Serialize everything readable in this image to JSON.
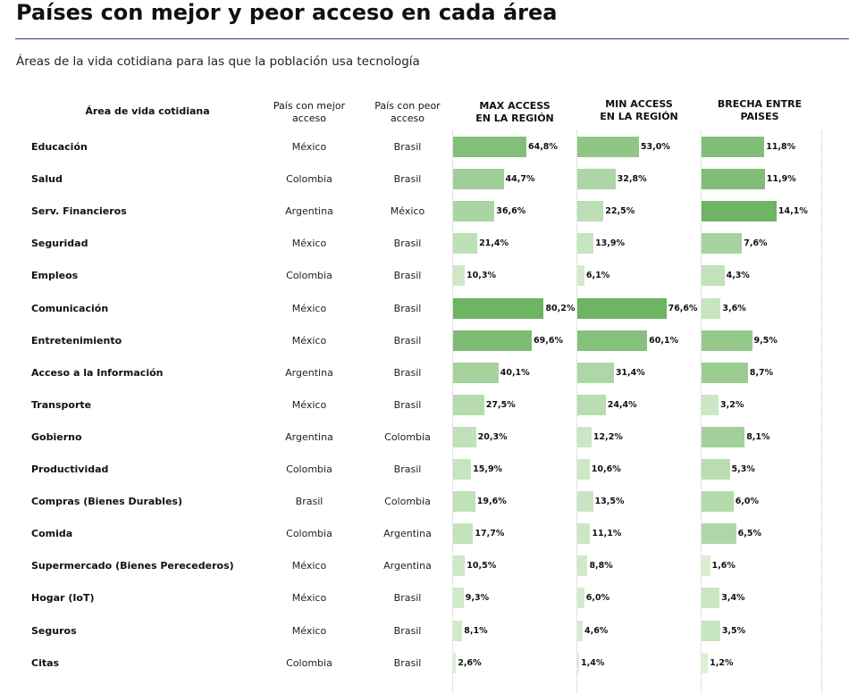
{
  "title": "Países con mejor y peor acceso en cada área",
  "subtitle": "Áreas de la vida cotidiana para las que la población usa tecnología",
  "headers": {
    "area": "Área de vida cotidiana",
    "best": "País con mejor acceso",
    "worst": "País con peor acceso",
    "max": "MAX ACCESS EN LA REGIÓN",
    "min": "MIN ACCESS EN LA REGIÓN",
    "gap": "BRECHA ENTRE PAISES"
  },
  "colors": {
    "bar_dark": "#6db463",
    "bar_light": "#dcf0d6",
    "rule": "#2e3a6e"
  },
  "chart_data": {
    "type": "table",
    "title": "Países con mejor y peor acceso en cada área",
    "columns": [
      "Área de vida cotidiana",
      "País con mejor acceso",
      "País con peor acceso",
      "MAX ACCESS EN LA REGIÓN",
      "MIN ACCESS EN LA REGIÓN",
      "BRECHA ENTRE PAISES"
    ],
    "unit": "%",
    "rows": [
      {
        "area": "Educación",
        "best": "México",
        "worst": "Brasil",
        "max": 64.8,
        "min": 53.0,
        "gap": 11.8,
        "max_label": "64,8%",
        "min_label": "53,0%",
        "gap_label": "11,8%"
      },
      {
        "area": "Salud",
        "best": "Colombia",
        "worst": "Brasil",
        "max": 44.7,
        "min": 32.8,
        "gap": 11.9,
        "max_label": "44,7%",
        "min_label": "32,8%",
        "gap_label": "11,9%"
      },
      {
        "area": "Serv. Financieros",
        "best": "Argentina",
        "worst": "México",
        "max": 36.6,
        "min": 22.5,
        "gap": 14.1,
        "max_label": "36,6%",
        "min_label": "22,5%",
        "gap_label": "14,1%"
      },
      {
        "area": "Seguridad",
        "best": "México",
        "worst": "Brasil",
        "max": 21.4,
        "min": 13.9,
        "gap": 7.6,
        "max_label": "21,4%",
        "min_label": "13,9%",
        "gap_label": "7,6%"
      },
      {
        "area": "Empleos",
        "best": "Colombia",
        "worst": "Brasil",
        "max": 10.3,
        "min": 6.1,
        "gap": 4.3,
        "max_label": "10,3%",
        "min_label": "6,1%",
        "gap_label": "4,3%"
      },
      {
        "area": "Comunicación",
        "best": "México",
        "worst": "Brasil",
        "max": 80.2,
        "min": 76.6,
        "gap": 3.6,
        "max_label": "80,2%",
        "min_label": "76,6%",
        "gap_label": "3,6%"
      },
      {
        "area": "Entretenimiento",
        "best": "México",
        "worst": "Brasil",
        "max": 69.6,
        "min": 60.1,
        "gap": 9.5,
        "max_label": "69,6%",
        "min_label": "60,1%",
        "gap_label": "9,5%"
      },
      {
        "area": "Acceso a la Información",
        "best": "Argentina",
        "worst": "Brasil",
        "max": 40.1,
        "min": 31.4,
        "gap": 8.7,
        "max_label": "40,1%",
        "min_label": "31,4%",
        "gap_label": "8,7%"
      },
      {
        "area": "Transporte",
        "best": "México",
        "worst": "Brasil",
        "max": 27.5,
        "min": 24.4,
        "gap": 3.2,
        "max_label": "27,5%",
        "min_label": "24,4%",
        "gap_label": "3,2%"
      },
      {
        "area": "Gobierno",
        "best": "Argentina",
        "worst": "Colombia",
        "max": 20.3,
        "min": 12.2,
        "gap": 8.1,
        "max_label": "20,3%",
        "min_label": "12,2%",
        "gap_label": "8,1%"
      },
      {
        "area": "Productividad",
        "best": "Colombia",
        "worst": "Brasil",
        "max": 15.9,
        "min": 10.6,
        "gap": 5.3,
        "max_label": "15,9%",
        "min_label": "10,6%",
        "gap_label": "5,3%"
      },
      {
        "area": "Compras (Bienes Durables)",
        "best": "Brasil",
        "worst": "Colombia",
        "max": 19.6,
        "min": 13.5,
        "gap": 6.0,
        "max_label": "19,6%",
        "min_label": "13,5%",
        "gap_label": "6,0%"
      },
      {
        "area": "Comida",
        "best": "Colombia",
        "worst": "Argentina",
        "max": 17.7,
        "min": 11.1,
        "gap": 6.5,
        "max_label": "17,7%",
        "min_label": "11,1%",
        "gap_label": "6,5%"
      },
      {
        "area": "Supermercado (Bienes Perecederos)",
        "best": "México",
        "worst": "Argentina",
        "max": 10.5,
        "min": 8.8,
        "gap": 1.6,
        "max_label": "10,5%",
        "min_label": "8,8%",
        "gap_label": "1,6%"
      },
      {
        "area": "Hogar (IoT)",
        "best": "México",
        "worst": "Brasil",
        "max": 9.3,
        "min": 6.0,
        "gap": 3.4,
        "max_label": "9,3%",
        "min_label": "6,0%",
        "gap_label": "3,4%"
      },
      {
        "area": "Seguros",
        "best": "México",
        "worst": "Brasil",
        "max": 8.1,
        "min": 4.6,
        "gap": 3.5,
        "max_label": "8,1%",
        "min_label": "4,6%",
        "gap_label": "3,5%"
      },
      {
        "area": "Citas",
        "best": "Colombia",
        "worst": "Brasil",
        "max": 2.6,
        "min": 1.4,
        "gap": 1.2,
        "max_label": "2,6%",
        "min_label": "1,4%",
        "gap_label": "1,2%"
      }
    ]
  }
}
